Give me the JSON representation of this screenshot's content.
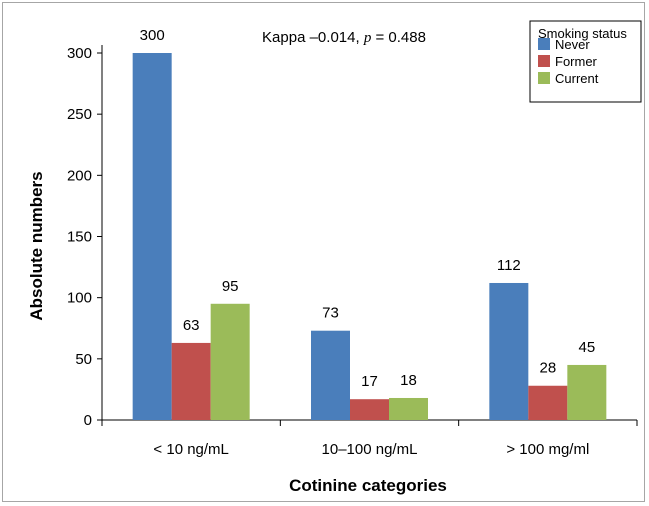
{
  "chart_data": {
    "type": "bar",
    "title": "",
    "annotation": {
      "prefix": "Kappa –0.014, ",
      "italic": "p",
      "suffix": " = 0.488"
    },
    "xlabel": "Cotinine categories",
    "ylabel": "Absolute numbers",
    "categories": [
      "< 10 ng/mL",
      "10–100 ng/mL",
      "> 100 mg/ml"
    ],
    "ylim": [
      0,
      300
    ],
    "yticks": [
      0,
      50,
      100,
      150,
      200,
      250,
      300
    ],
    "grid": false,
    "legend": {
      "title": "Smoking status",
      "position": "top-right"
    },
    "series": [
      {
        "name": "Never",
        "color": "#4a7ebb",
        "values": [
          300,
          73,
          112
        ]
      },
      {
        "name": "Former",
        "color": "#c0504d",
        "values": [
          63,
          17,
          28
        ]
      },
      {
        "name": "Current",
        "color": "#9bbb59",
        "values": [
          95,
          18,
          45
        ]
      }
    ]
  }
}
